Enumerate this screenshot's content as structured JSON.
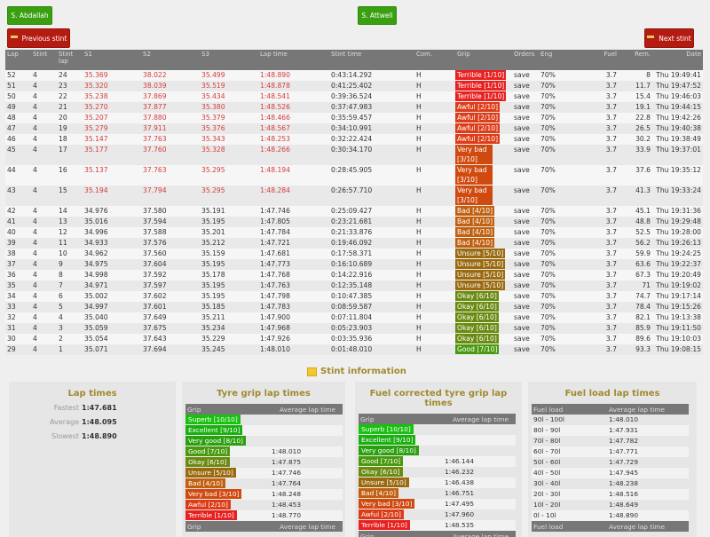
{
  "buttons": {
    "driver1": "S. Abdallah",
    "driver2": "S. Attwell",
    "previous_stint": "Previous stint",
    "next_stint": "Next stint"
  },
  "lap_table": {
    "headers": [
      "Lap",
      "Stint",
      "Stint lap",
      "S1",
      "S2",
      "S3",
      "Lap time",
      "Stint time",
      "Com.",
      "Grip",
      "Orders",
      "Eng",
      "Fuel",
      "Rem.",
      "Date"
    ],
    "rows": [
      {
        "lap": "52",
        "stint": "4",
        "stint_lap": "24",
        "s1": "35.369",
        "s2": "38.022",
        "s3": "35.499",
        "lap_time": "1:48.890",
        "stint_time": "0:43:14.292",
        "com": "H",
        "grip": "Terrible [1/10]",
        "grip_level": 1,
        "orders": "save",
        "eng": "70%",
        "fuel": "3.7",
        "rem": "8",
        "date": "Thu 19:49:41",
        "slow": true
      },
      {
        "lap": "51",
        "stint": "4",
        "stint_lap": "23",
        "s1": "35.320",
        "s2": "38.039",
        "s3": "35.519",
        "lap_time": "1:48.878",
        "stint_time": "0:41:25.402",
        "com": "H",
        "grip": "Terrible [1/10]",
        "grip_level": 1,
        "orders": "save",
        "eng": "70%",
        "fuel": "3.7",
        "rem": "11.7",
        "date": "Thu 19:47:52",
        "slow": true
      },
      {
        "lap": "50",
        "stint": "4",
        "stint_lap": "22",
        "s1": "35.238",
        "s2": "37.869",
        "s3": "35.434",
        "lap_time": "1:48.541",
        "stint_time": "0:39:36.524",
        "com": "H",
        "grip": "Terrible [1/10]",
        "grip_level": 1,
        "orders": "save",
        "eng": "70%",
        "fuel": "3.7",
        "rem": "15.4",
        "date": "Thu 19:46:03",
        "slow": true
      },
      {
        "lap": "49",
        "stint": "4",
        "stint_lap": "21",
        "s1": "35.270",
        "s2": "37.877",
        "s3": "35.380",
        "lap_time": "1:48.526",
        "stint_time": "0:37:47.983",
        "com": "H",
        "grip": "Awful [2/10]",
        "grip_level": 2,
        "orders": "save",
        "eng": "70%",
        "fuel": "3.7",
        "rem": "19.1",
        "date": "Thu 19:44:15",
        "slow": true
      },
      {
        "lap": "48",
        "stint": "4",
        "stint_lap": "20",
        "s1": "35.207",
        "s2": "37.880",
        "s3": "35.379",
        "lap_time": "1:48.466",
        "stint_time": "0:35:59.457",
        "com": "H",
        "grip": "Awful [2/10]",
        "grip_level": 2,
        "orders": "save",
        "eng": "70%",
        "fuel": "3.7",
        "rem": "22.8",
        "date": "Thu 19:42:26",
        "slow": true
      },
      {
        "lap": "47",
        "stint": "4",
        "stint_lap": "19",
        "s1": "35.279",
        "s2": "37.911",
        "s3": "35.376",
        "lap_time": "1:48.567",
        "stint_time": "0:34:10.991",
        "com": "H",
        "grip": "Awful [2/10]",
        "grip_level": 2,
        "orders": "save",
        "eng": "70%",
        "fuel": "3.7",
        "rem": "26.5",
        "date": "Thu 19:40:38",
        "slow": true
      },
      {
        "lap": "46",
        "stint": "4",
        "stint_lap": "18",
        "s1": "35.147",
        "s2": "37.763",
        "s3": "35.343",
        "lap_time": "1:48.253",
        "stint_time": "0:32:22.424",
        "com": "H",
        "grip": "Awful [2/10]",
        "grip_level": 2,
        "orders": "save",
        "eng": "70%",
        "fuel": "3.7",
        "rem": "30.2",
        "date": "Thu 19:38:49",
        "slow": true
      },
      {
        "lap": "45",
        "stint": "4",
        "stint_lap": "17",
        "s1": "35.177",
        "s2": "37.760",
        "s3": "35.328",
        "lap_time": "1:48.266",
        "stint_time": "0:30:34.170",
        "com": "H",
        "grip": "Very bad [3/10]",
        "grip_level": 3,
        "orders": "save",
        "eng": "70%",
        "fuel": "3.7",
        "rem": "33.9",
        "date": "Thu 19:37:01",
        "slow": true
      },
      {
        "lap": "44",
        "stint": "4",
        "stint_lap": "16",
        "s1": "35.137",
        "s2": "37.763",
        "s3": "35.295",
        "lap_time": "1:48.194",
        "stint_time": "0:28:45.905",
        "com": "H",
        "grip": "Very bad [3/10]",
        "grip_level": 3,
        "orders": "save",
        "eng": "70%",
        "fuel": "3.7",
        "rem": "37.6",
        "date": "Thu 19:35:12",
        "slow": true
      },
      {
        "lap": "43",
        "stint": "4",
        "stint_lap": "15",
        "s1": "35.194",
        "s2": "37.794",
        "s3": "35.295",
        "lap_time": "1:48.284",
        "stint_time": "0:26:57.710",
        "com": "H",
        "grip": "Very bad [3/10]",
        "grip_level": 3,
        "orders": "save",
        "eng": "70%",
        "fuel": "3.7",
        "rem": "41.3",
        "date": "Thu 19:33:24",
        "slow": true
      },
      {
        "lap": "42",
        "stint": "4",
        "stint_lap": "14",
        "s1": "34.976",
        "s2": "37.580",
        "s3": "35.191",
        "lap_time": "1:47.746",
        "stint_time": "0:25:09.427",
        "com": "H",
        "grip": "Bad [4/10]",
        "grip_level": 4,
        "orders": "save",
        "eng": "70%",
        "fuel": "3.7",
        "rem": "45.1",
        "date": "Thu 19:31:36",
        "slow": false
      },
      {
        "lap": "41",
        "stint": "4",
        "stint_lap": "13",
        "s1": "35.016",
        "s2": "37.594",
        "s3": "35.195",
        "lap_time": "1:47.805",
        "stint_time": "0:23:21.681",
        "com": "H",
        "grip": "Bad [4/10]",
        "grip_level": 4,
        "orders": "save",
        "eng": "70%",
        "fuel": "3.7",
        "rem": "48.8",
        "date": "Thu 19:29:48",
        "slow": false
      },
      {
        "lap": "40",
        "stint": "4",
        "stint_lap": "12",
        "s1": "34.996",
        "s2": "37.588",
        "s3": "35.201",
        "lap_time": "1:47.784",
        "stint_time": "0:21:33.876",
        "com": "H",
        "grip": "Bad [4/10]",
        "grip_level": 4,
        "orders": "save",
        "eng": "70%",
        "fuel": "3.7",
        "rem": "52.5",
        "date": "Thu 19:28:00",
        "slow": false
      },
      {
        "lap": "39",
        "stint": "4",
        "stint_lap": "11",
        "s1": "34.933",
        "s2": "37.576",
        "s3": "35.212",
        "lap_time": "1:47.721",
        "stint_time": "0:19:46.092",
        "com": "H",
        "grip": "Bad [4/10]",
        "grip_level": 4,
        "orders": "save",
        "eng": "70%",
        "fuel": "3.7",
        "rem": "56.2",
        "date": "Thu 19:26:13",
        "slow": false
      },
      {
        "lap": "38",
        "stint": "4",
        "stint_lap": "10",
        "s1": "34.962",
        "s2": "37.560",
        "s3": "35.159",
        "lap_time": "1:47.681",
        "stint_time": "0:17:58.371",
        "com": "H",
        "grip": "Unsure [5/10]",
        "grip_level": 5,
        "orders": "save",
        "eng": "70%",
        "fuel": "3.7",
        "rem": "59.9",
        "date": "Thu 19:24:25",
        "slow": false
      },
      {
        "lap": "37",
        "stint": "4",
        "stint_lap": "9",
        "s1": "34.975",
        "s2": "37.604",
        "s3": "35.195",
        "lap_time": "1:47.773",
        "stint_time": "0:16:10.689",
        "com": "H",
        "grip": "Unsure [5/10]",
        "grip_level": 5,
        "orders": "save",
        "eng": "70%",
        "fuel": "3.7",
        "rem": "63.6",
        "date": "Thu 19:22:37",
        "slow": false
      },
      {
        "lap": "36",
        "stint": "4",
        "stint_lap": "8",
        "s1": "34.998",
        "s2": "37.592",
        "s3": "35.178",
        "lap_time": "1:47.768",
        "stint_time": "0:14:22.916",
        "com": "H",
        "grip": "Unsure [5/10]",
        "grip_level": 5,
        "orders": "save",
        "eng": "70%",
        "fuel": "3.7",
        "rem": "67.3",
        "date": "Thu 19:20:49",
        "slow": false
      },
      {
        "lap": "35",
        "stint": "4",
        "stint_lap": "7",
        "s1": "34.971",
        "s2": "37.597",
        "s3": "35.195",
        "lap_time": "1:47.763",
        "stint_time": "0:12:35.148",
        "com": "H",
        "grip": "Unsure [5/10]",
        "grip_level": 5,
        "orders": "save",
        "eng": "70%",
        "fuel": "3.7",
        "rem": "71",
        "date": "Thu 19:19:02",
        "slow": false
      },
      {
        "lap": "34",
        "stint": "4",
        "stint_lap": "6",
        "s1": "35.002",
        "s2": "37.602",
        "s3": "35.195",
        "lap_time": "1:47.798",
        "stint_time": "0:10:47.385",
        "com": "H",
        "grip": "Okay [6/10]",
        "grip_level": 6,
        "orders": "save",
        "eng": "70%",
        "fuel": "3.7",
        "rem": "74.7",
        "date": "Thu 19:17:14",
        "slow": false
      },
      {
        "lap": "33",
        "stint": "4",
        "stint_lap": "5",
        "s1": "34.997",
        "s2": "37.601",
        "s3": "35.185",
        "lap_time": "1:47.783",
        "stint_time": "0:08:59.587",
        "com": "H",
        "grip": "Okay [6/10]",
        "grip_level": 6,
        "orders": "save",
        "eng": "70%",
        "fuel": "3.7",
        "rem": "78.4",
        "date": "Thu 19:15:26",
        "slow": false
      },
      {
        "lap": "32",
        "stint": "4",
        "stint_lap": "4",
        "s1": "35.040",
        "s2": "37.649",
        "s3": "35.211",
        "lap_time": "1:47.900",
        "stint_time": "0:07:11.804",
        "com": "H",
        "grip": "Okay [6/10]",
        "grip_level": 6,
        "orders": "save",
        "eng": "70%",
        "fuel": "3.7",
        "rem": "82.1",
        "date": "Thu 19:13:38",
        "slow": false
      },
      {
        "lap": "31",
        "stint": "4",
        "stint_lap": "3",
        "s1": "35.059",
        "s2": "37.675",
        "s3": "35.234",
        "lap_time": "1:47.968",
        "stint_time": "0:05:23.903",
        "com": "H",
        "grip": "Okay [6/10]",
        "grip_level": 6,
        "orders": "save",
        "eng": "70%",
        "fuel": "3.7",
        "rem": "85.9",
        "date": "Thu 19:11:50",
        "slow": false
      },
      {
        "lap": "30",
        "stint": "4",
        "stint_lap": "2",
        "s1": "35.054",
        "s2": "37.643",
        "s3": "35.229",
        "lap_time": "1:47.926",
        "stint_time": "0:03:35.936",
        "com": "H",
        "grip": "Okay [6/10]",
        "grip_level": 6,
        "orders": "save",
        "eng": "70%",
        "fuel": "3.7",
        "rem": "89.6",
        "date": "Thu 19:10:03",
        "slow": false
      },
      {
        "lap": "29",
        "stint": "4",
        "stint_lap": "1",
        "s1": "35.071",
        "s2": "37.694",
        "s3": "35.245",
        "lap_time": "1:48.010",
        "stint_time": "0:01:48.010",
        "com": "H",
        "grip": "Good [7/10]",
        "grip_level": 7,
        "orders": "save",
        "eng": "70%",
        "fuel": "3.7",
        "rem": "93.3",
        "date": "Thu 19:08:15",
        "slow": false
      }
    ]
  },
  "stint_info": {
    "title": "Stint information",
    "lap_times": {
      "title": "Lap times",
      "rows": [
        {
          "label": "Fastest",
          "value": "1:47.681"
        },
        {
          "label": "Average",
          "value": "1:48.095"
        },
        {
          "label": "Slowest",
          "value": "1:48.890"
        }
      ]
    },
    "tyre_grip": {
      "title": "Tyre grip lap times",
      "col1": "Grip",
      "col2": "Average lap time",
      "rows": [
        {
          "grip": "Superb [10/10]",
          "level": 10,
          "time": ""
        },
        {
          "grip": "Excellent [9/10]",
          "level": 9,
          "time": ""
        },
        {
          "grip": "Very good [8/10]",
          "level": 8,
          "time": ""
        },
        {
          "grip": "Good [7/10]",
          "level": 7,
          "time": "1:48.010"
        },
        {
          "grip": "Okay [6/10]",
          "level": 6,
          "time": "1:47.875"
        },
        {
          "grip": "Unsure [5/10]",
          "level": 5,
          "time": "1:47.746"
        },
        {
          "grip": "Bad [4/10]",
          "level": 4,
          "time": "1:47.764"
        },
        {
          "grip": "Very bad [3/10]",
          "level": 3,
          "time": "1:48.248"
        },
        {
          "grip": "Awful [2/10]",
          "level": 2,
          "time": "1:48.453"
        },
        {
          "grip": "Terrible [1/10]",
          "level": 1,
          "time": "1:48.770"
        }
      ]
    },
    "fuel_corrected": {
      "title": "Fuel corrected tyre grip lap times",
      "col1": "Grip",
      "col2": "Average lap time",
      "rows": [
        {
          "grip": "Superb [10/10]",
          "level": 10,
          "time": ""
        },
        {
          "grip": "Excellent [9/10]",
          "level": 9,
          "time": ""
        },
        {
          "grip": "Very good [8/10]",
          "level": 8,
          "time": ""
        },
        {
          "grip": "Good [7/10]",
          "level": 7,
          "time": "1:46.144"
        },
        {
          "grip": "Okay [6/10]",
          "level": 6,
          "time": "1:46.232"
        },
        {
          "grip": "Unsure [5/10]",
          "level": 5,
          "time": "1:46.438"
        },
        {
          "grip": "Bad [4/10]",
          "level": 4,
          "time": "1:46.751"
        },
        {
          "grip": "Very bad [3/10]",
          "level": 3,
          "time": "1:47.495"
        },
        {
          "grip": "Awful [2/10]",
          "level": 2,
          "time": "1:47.960"
        },
        {
          "grip": "Terrible [1/10]",
          "level": 1,
          "time": "1:48.535"
        }
      ]
    },
    "fuel_load": {
      "title": "Fuel load lap times",
      "col1": "Fuel load",
      "col2": "Average lap time",
      "rows": [
        {
          "load": "90l - 100l",
          "time": "1:48.010"
        },
        {
          "load": "80l - 90l",
          "time": "1:47.931"
        },
        {
          "load": "70l - 80l",
          "time": "1:47.782"
        },
        {
          "load": "60l - 70l",
          "time": "1:47.771"
        },
        {
          "load": "50l - 60l",
          "time": "1:47.729"
        },
        {
          "load": "40l - 50l",
          "time": "1:47.945"
        },
        {
          "load": "30l - 40l",
          "time": "1:48.238"
        },
        {
          "load": "20l - 30l",
          "time": "1:48.516"
        },
        {
          "load": "10l - 20l",
          "time": "1:48.649"
        },
        {
          "load": "0l - 10l",
          "time": "1:48.890"
        }
      ]
    }
  }
}
